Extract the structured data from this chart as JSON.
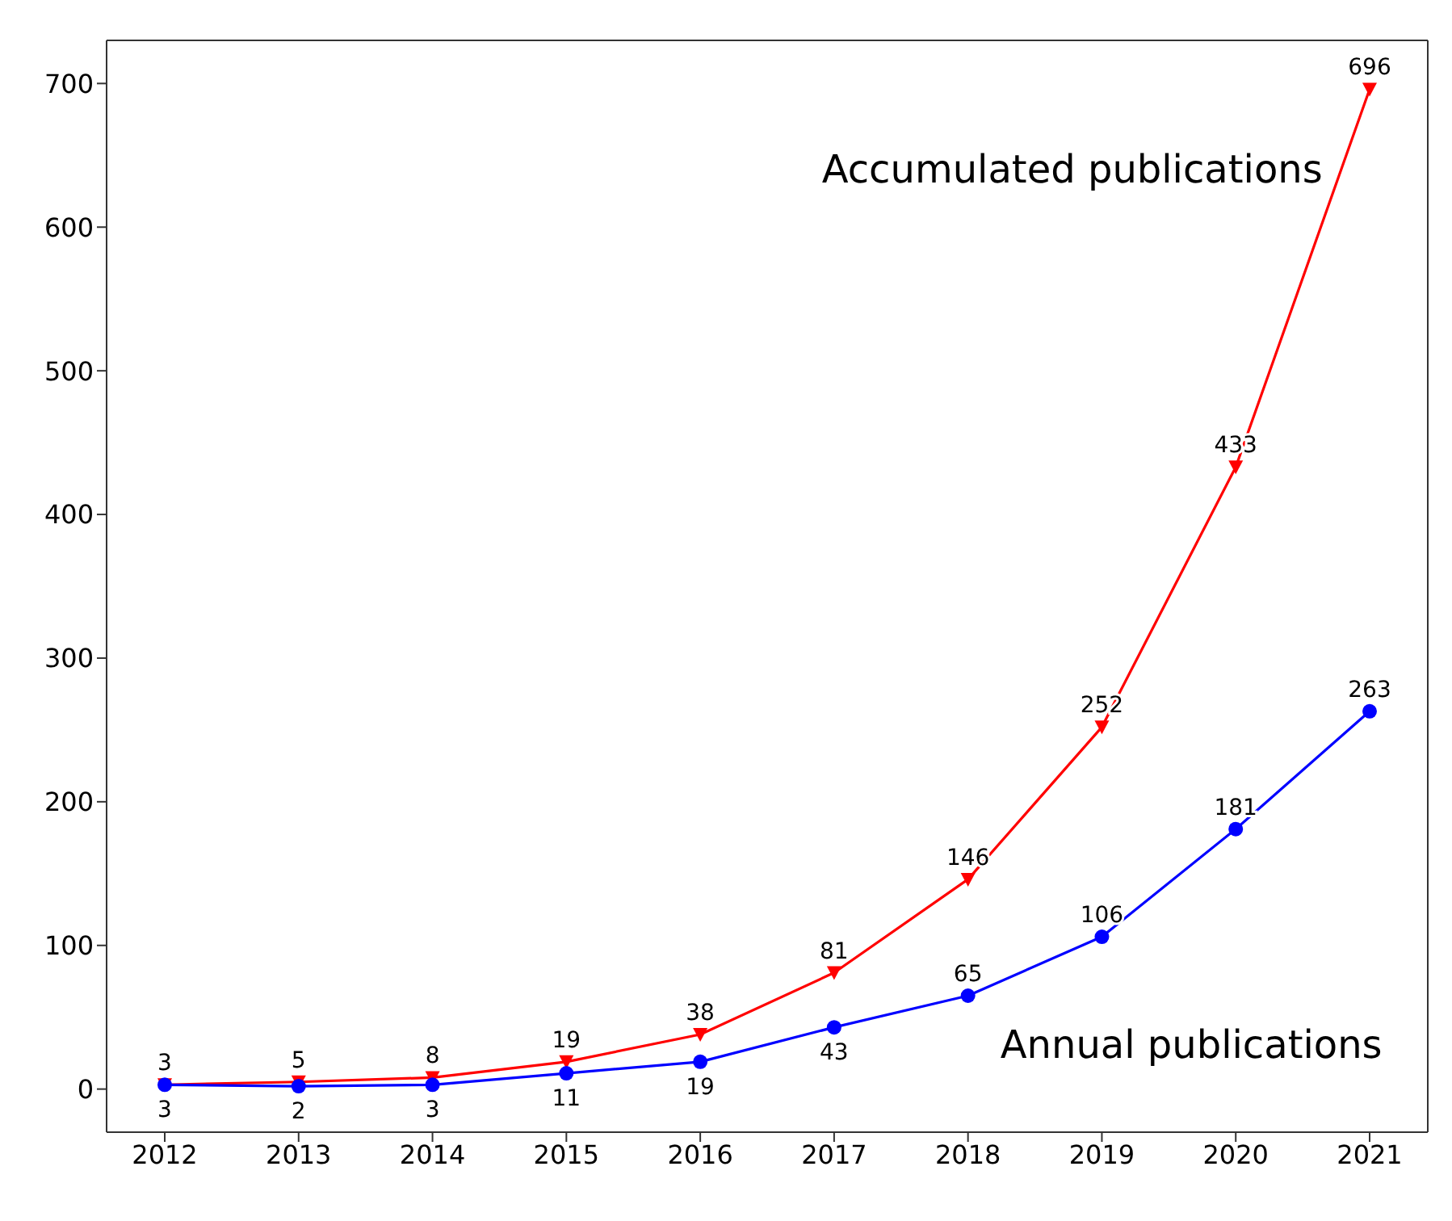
{
  "chart_data": {
    "type": "line",
    "categories": [
      "2012",
      "2013",
      "2014",
      "2015",
      "2016",
      "2017",
      "2018",
      "2019",
      "2020",
      "2021"
    ],
    "series": [
      {
        "name": "Accumulated publications",
        "color": "#ff0000",
        "marker": "triangle",
        "values": [
          3,
          5,
          8,
          19,
          38,
          81,
          146,
          252,
          433,
          696
        ]
      },
      {
        "name": "Annual publications",
        "color": "#0000ff",
        "marker": "circle",
        "values": [
          3,
          2,
          3,
          11,
          19,
          43,
          65,
          106,
          181,
          263
        ]
      }
    ],
    "ylim": [
      -30,
      730
    ],
    "yticks": [
      0,
      100,
      200,
      300,
      400,
      500,
      600,
      700
    ],
    "data_labels": true,
    "grid": false,
    "legend": false,
    "line_style": "solid"
  }
}
